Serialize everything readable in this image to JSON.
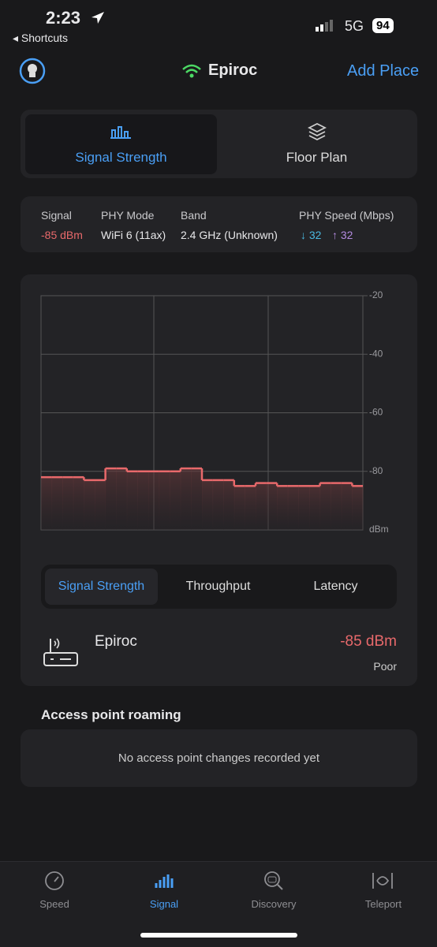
{
  "status_bar": {
    "time": "2:23",
    "back": "Shortcuts",
    "network": "5G",
    "battery": "94"
  },
  "header": {
    "network_name": "Epiroc",
    "action": "Add Place"
  },
  "view_tabs": [
    "Signal Strength",
    "Floor Plan"
  ],
  "info": {
    "labels": [
      "Signal",
      "PHY Mode",
      "Band",
      "PHY Speed (Mbps)"
    ],
    "signal": "-85 dBm",
    "phy_mode": "WiFi 6 (11ax)",
    "band": "2.4 GHz (Unknown)",
    "download": "↓ 32",
    "upload": "↑ 32"
  },
  "chart_data": {
    "type": "line",
    "y_label": "dBm",
    "values": [
      -82,
      -82,
      -82,
      -82,
      -83,
      -83,
      -79,
      -79,
      -80,
      -80,
      -80,
      -80,
      -80,
      -79,
      -79,
      -83,
      -83,
      -83,
      -85,
      -85,
      -84,
      -84,
      -85,
      -85,
      -85,
      -85,
      -84,
      -84,
      -84,
      -85
    ],
    "color": "#e8696b",
    "ylim": [
      -100,
      -20
    ],
    "yticks": [
      -80,
      -60,
      -40,
      -20
    ],
    "grid": true
  },
  "metric_tabs": [
    "Signal Strength",
    "Throughput",
    "Latency"
  ],
  "device": {
    "name": "Epiroc",
    "signal": "-85 dBm",
    "quality": "Poor"
  },
  "roaming": {
    "title": "Access point roaming",
    "empty": "No access point changes recorded yet"
  },
  "tab_bar": [
    "Speed",
    "Signal",
    "Discovery",
    "Teleport"
  ]
}
